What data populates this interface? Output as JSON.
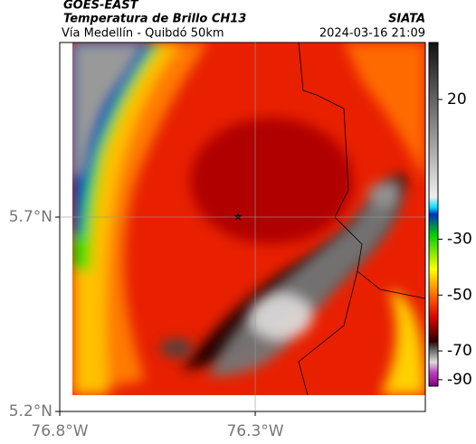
{
  "header": {
    "title": "GOES-EAST",
    "subtitle": "Temperatura de Brillo CH13",
    "location": "Vía Medellín - Quibdó 50km",
    "source": "SIATA",
    "datetime": "2024-03-16 21:09"
  },
  "map": {
    "xlim": [
      -76.8,
      -75.865
    ],
    "ylim": [
      5.2,
      6.149
    ],
    "xticks": [
      {
        "value": -76.8,
        "label": "76.8°W"
      },
      {
        "value": -76.3,
        "label": "76.3°W"
      }
    ],
    "yticks": [
      {
        "value": 5.2,
        "label": "5.2°N"
      },
      {
        "value": 5.7,
        "label": "5.7°N"
      }
    ],
    "grid": true
  },
  "colorbar": {
    "ticks": [
      20,
      -30,
      -50,
      -70,
      -90
    ]
  }
}
